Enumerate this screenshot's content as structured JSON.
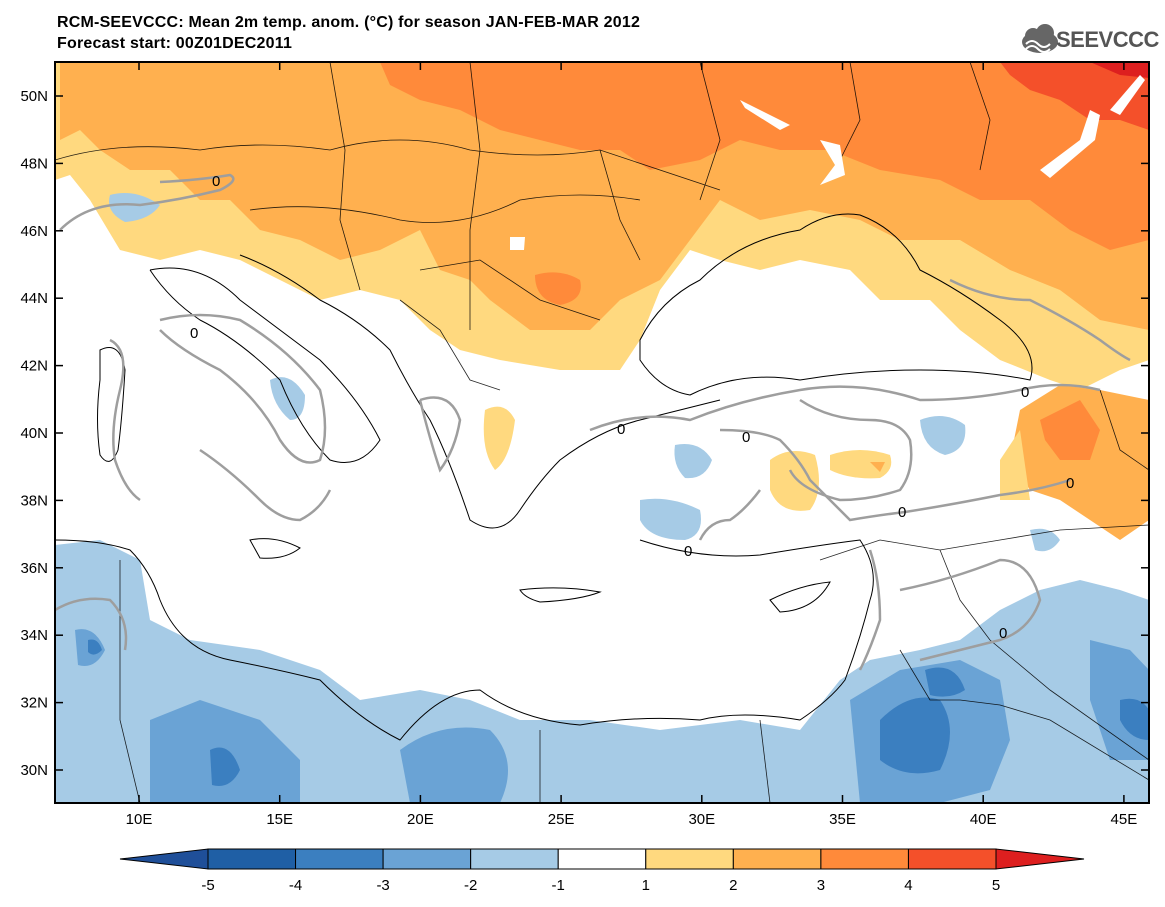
{
  "header": {
    "title_line1": "RCM-SEEVCCC: Mean 2m temp. anom. (°C) for season JAN-FEB-MAR 2012",
    "title_line2": "Forecast start: 00Z01DEC2011",
    "logo_text": "SEEVCCC"
  },
  "map": {
    "lat_labels": [
      "50N",
      "48N",
      "46N",
      "44N",
      "42N",
      "40N",
      "38N",
      "36N",
      "34N",
      "32N",
      "30N"
    ],
    "lon_labels": [
      "10E",
      "15E",
      "20E",
      "25E",
      "30E",
      "35E",
      "40E",
      "45E"
    ],
    "contour_label": "0"
  },
  "colorbar": {
    "levels": [
      "-5",
      "-4",
      "-3",
      "-2",
      "-1",
      "1",
      "2",
      "3",
      "4",
      "5"
    ],
    "colors": [
      "#1f5fa5",
      "#3b7fc0",
      "#6aa3d5",
      "#a6cbe6",
      "#ffffff",
      "#ffd97f",
      "#ffb04f",
      "#ff8a3a",
      "#f4502a",
      "#dd1f1f",
      "#1f4f99"
    ]
  }
}
